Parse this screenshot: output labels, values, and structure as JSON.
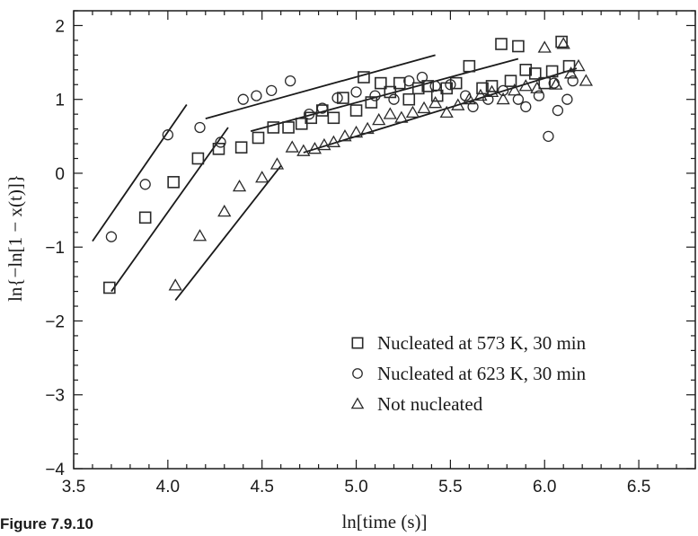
{
  "figure": {
    "caption": "Figure 7.9.10"
  },
  "chart_data": {
    "type": "scatter",
    "xlabel": "ln[time (s)]",
    "ylabel": "ln{−ln[1 − x(t)]}",
    "xlim": [
      3.5,
      6.8
    ],
    "ylim": [
      -4,
      2.2
    ],
    "xticks": [
      3.5,
      4.0,
      4.5,
      5.0,
      5.5,
      6.0,
      6.5
    ],
    "yticks": [
      -4,
      -3,
      -2,
      -1,
      0,
      1,
      2
    ],
    "xtick_labels": [
      "3.5",
      "4.0",
      "4.5",
      "5.0",
      "5.5",
      "6.0",
      "6.5"
    ],
    "ytick_labels": [
      "−4",
      "−3",
      "−2",
      "−1",
      "0",
      "1",
      "2"
    ],
    "legend_position": "lower-right",
    "series": [
      {
        "name": "Nucleated at 573 K, 30 min",
        "marker": "square",
        "points": [
          [
            3.69,
            -1.55
          ],
          [
            3.88,
            -0.6
          ],
          [
            4.03,
            -0.12
          ],
          [
            4.16,
            0.2
          ],
          [
            4.27,
            0.33
          ],
          [
            4.39,
            0.35
          ],
          [
            4.48,
            0.48
          ],
          [
            4.56,
            0.62
          ],
          [
            4.64,
            0.62
          ],
          [
            4.71,
            0.67
          ],
          [
            4.76,
            0.75
          ],
          [
            4.82,
            0.85
          ],
          [
            4.88,
            0.75
          ],
          [
            4.93,
            1.02
          ],
          [
            5.0,
            0.85
          ],
          [
            5.04,
            1.3
          ],
          [
            5.08,
            0.96
          ],
          [
            5.13,
            1.22
          ],
          [
            5.18,
            1.1
          ],
          [
            5.23,
            1.22
          ],
          [
            5.28,
            1.0
          ],
          [
            5.33,
            1.15
          ],
          [
            5.38,
            1.18
          ],
          [
            5.43,
            1.05
          ],
          [
            5.48,
            1.15
          ],
          [
            5.53,
            1.22
          ],
          [
            5.6,
            1.45
          ],
          [
            5.67,
            1.15
          ],
          [
            5.72,
            1.18
          ],
          [
            5.77,
            1.75
          ],
          [
            5.82,
            1.25
          ],
          [
            5.86,
            1.72
          ],
          [
            5.9,
            1.4
          ],
          [
            5.95,
            1.35
          ],
          [
            6.0,
            1.22
          ],
          [
            6.04,
            1.38
          ],
          [
            6.09,
            1.78
          ],
          [
            6.13,
            1.45
          ]
        ]
      },
      {
        "name": "Nucleated at 623 K, 30 min",
        "marker": "circle",
        "points": [
          [
            3.7,
            -0.86
          ],
          [
            3.88,
            -0.15
          ],
          [
            4.0,
            0.52
          ],
          [
            4.17,
            0.62
          ],
          [
            4.28,
            0.42
          ],
          [
            4.4,
            1.0
          ],
          [
            4.47,
            1.05
          ],
          [
            4.55,
            1.12
          ],
          [
            4.65,
            1.25
          ],
          [
            4.75,
            0.8
          ],
          [
            4.82,
            0.88
          ],
          [
            4.9,
            1.02
          ],
          [
            5.0,
            1.1
          ],
          [
            5.1,
            1.05
          ],
          [
            5.2,
            1.0
          ],
          [
            5.28,
            1.25
          ],
          [
            5.35,
            1.3
          ],
          [
            5.42,
            1.18
          ],
          [
            5.5,
            1.2
          ],
          [
            5.58,
            1.05
          ],
          [
            5.62,
            0.9
          ],
          [
            5.7,
            1.0
          ],
          [
            5.78,
            1.12
          ],
          [
            5.86,
            1.0
          ],
          [
            5.9,
            0.9
          ],
          [
            5.97,
            1.05
          ],
          [
            6.02,
            0.5
          ],
          [
            6.05,
            1.22
          ],
          [
            6.07,
            0.85
          ],
          [
            6.12,
            1.0
          ],
          [
            6.15,
            1.25
          ]
        ]
      },
      {
        "name": "Not nucleated",
        "marker": "triangle",
        "points": [
          [
            4.04,
            -1.52
          ],
          [
            4.17,
            -0.85
          ],
          [
            4.3,
            -0.52
          ],
          [
            4.38,
            -0.18
          ],
          [
            4.5,
            -0.06
          ],
          [
            4.58,
            0.12
          ],
          [
            4.66,
            0.35
          ],
          [
            4.72,
            0.3
          ],
          [
            4.78,
            0.33
          ],
          [
            4.83,
            0.38
          ],
          [
            4.88,
            0.42
          ],
          [
            4.94,
            0.5
          ],
          [
            5.0,
            0.55
          ],
          [
            5.06,
            0.6
          ],
          [
            5.12,
            0.72
          ],
          [
            5.18,
            0.8
          ],
          [
            5.24,
            0.75
          ],
          [
            5.3,
            0.82
          ],
          [
            5.36,
            0.88
          ],
          [
            5.42,
            0.95
          ],
          [
            5.48,
            0.82
          ],
          [
            5.54,
            0.92
          ],
          [
            5.6,
            1.0
          ],
          [
            5.66,
            1.05
          ],
          [
            5.72,
            1.1
          ],
          [
            5.78,
            1.0
          ],
          [
            5.84,
            1.12
          ],
          [
            5.9,
            1.18
          ],
          [
            5.96,
            1.15
          ],
          [
            6.0,
            1.7
          ],
          [
            6.06,
            1.2
          ],
          [
            6.1,
            1.75
          ],
          [
            6.14,
            1.35
          ],
          [
            6.18,
            1.45
          ],
          [
            6.22,
            1.25
          ]
        ]
      }
    ],
    "fit_lines": [
      {
        "x": [
          3.6,
          4.1
        ],
        "y": [
          -0.92,
          0.93
        ]
      },
      {
        "x": [
          3.7,
          4.32
        ],
        "y": [
          -1.6,
          0.62
        ]
      },
      {
        "x": [
          4.04,
          4.6
        ],
        "y": [
          -1.72,
          0.1
        ]
      },
      {
        "x": [
          4.2,
          5.42
        ],
        "y": [
          0.74,
          1.6
        ]
      },
      {
        "x": [
          4.44,
          5.86
        ],
        "y": [
          0.57,
          1.55
        ]
      },
      {
        "x": [
          4.72,
          6.17
        ],
        "y": [
          0.28,
          1.42
        ]
      }
    ]
  }
}
